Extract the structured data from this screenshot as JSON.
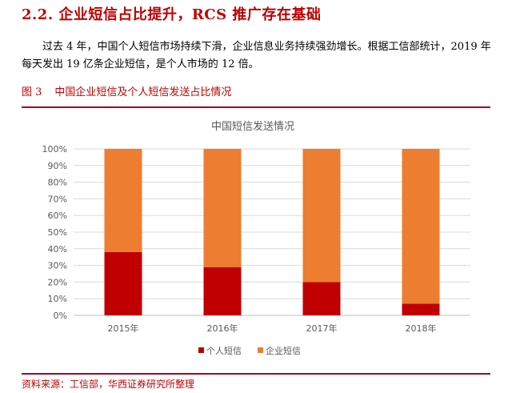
{
  "section": {
    "heading": "2.2. 企业短信占比提升，RCS 推广存在基础"
  },
  "paragraph": "过去 4 年，中国个人短信市场持续下滑，企业信息业务持续强劲增长。根据工信部统计，2019 年每天发出 19 亿条企业短信，是个人市场的 12 倍。",
  "figure": {
    "number": "图 3",
    "caption": "中国企业短信及个人短信发送占比情况"
  },
  "source": "资料来源：工信部，华西证券研究所整理",
  "colors": {
    "personal": "#c00000",
    "enterprise": "#ed7d31",
    "grid": "#d9d9d9",
    "accent": "#c00000"
  },
  "chart_data": {
    "type": "bar",
    "stacked": true,
    "title": "中国短信发送情况",
    "categories": [
      "2015年",
      "2016年",
      "2017年",
      "2018年"
    ],
    "series": [
      {
        "name": "个人短信",
        "values": [
          38,
          29,
          20,
          7
        ]
      },
      {
        "name": "企业短信",
        "values": [
          62,
          71,
          80,
          93
        ]
      }
    ],
    "ylim": [
      0,
      100
    ],
    "yticks": [
      "0%",
      "10%",
      "20%",
      "30%",
      "40%",
      "50%",
      "60%",
      "70%",
      "80%",
      "90%",
      "100%"
    ],
    "xlabel": "",
    "ylabel": "",
    "grid": true,
    "legend": "bottom"
  }
}
